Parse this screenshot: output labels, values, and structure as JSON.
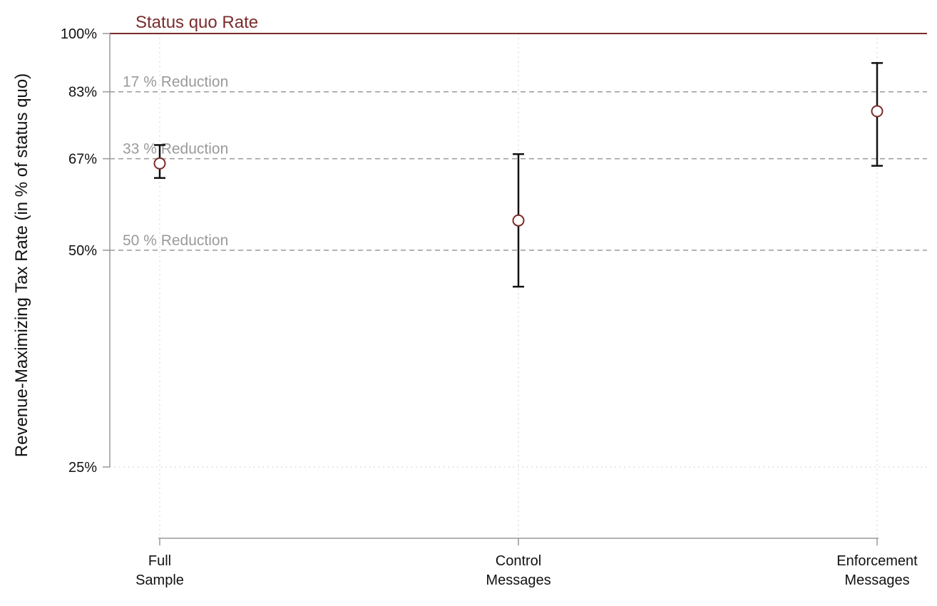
{
  "chart_data": {
    "type": "scatter",
    "title": "",
    "xlabel": "",
    "ylabel": "Revenue-Maximizing Tax Rate (in % of status quo)",
    "ylim": [
      18,
      100
    ],
    "y_scale": "log",
    "y_ticks": [
      {
        "value": 100,
        "label": "100%"
      },
      {
        "value": 83,
        "label": "83%"
      },
      {
        "value": 67,
        "label": "67%"
      },
      {
        "value": 50,
        "label": "50%"
      },
      {
        "value": 25,
        "label": "25%"
      }
    ],
    "categories": [
      {
        "lines": [
          "Full",
          "Sample"
        ]
      },
      {
        "lines": [
          "Control",
          "Messages"
        ]
      },
      {
        "lines": [
          "Enforcement",
          "Messages"
        ]
      }
    ],
    "points": [
      {
        "category": "Full Sample",
        "estimate": 66,
        "ci_low": 63,
        "ci_high": 70
      },
      {
        "category": "Control Messages",
        "estimate": 55,
        "ci_low": 44.5,
        "ci_high": 68
      },
      {
        "category": "Enforcement Messages",
        "estimate": 78,
        "ci_low": 65.5,
        "ci_high": 91
      }
    ],
    "reference_lines": [
      {
        "value": 100,
        "label": "Status quo Rate",
        "color": "#7b2c2c",
        "style": "solid"
      },
      {
        "value": 83,
        "label": "17 % Reduction",
        "color": "#9a9a9a",
        "style": "dashed"
      },
      {
        "value": 67,
        "label": "33 % Reduction",
        "color": "#9a9a9a",
        "style": "dashed"
      },
      {
        "value": 50,
        "label": "50 % Reduction",
        "color": "#9a9a9a",
        "style": "dashed"
      }
    ],
    "grid": true,
    "marker_color": "#7b2c2c",
    "errorbar_color": "#111111",
    "axis_color": "#999999"
  }
}
